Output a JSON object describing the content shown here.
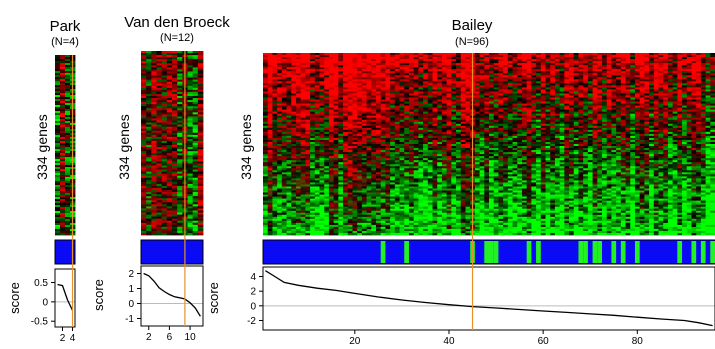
{
  "chart_data": [
    {
      "type": "heatmap",
      "title": "Park",
      "subtitle": "(N=4)",
      "ylabel": "334 genes",
      "n_genes": 334,
      "n_samples": 4,
      "cutoff_sample": 4,
      "class_bar_colors": {
        "class1": "#0a0af5",
        "class2": "#22f222"
      },
      "class_bar": [
        0,
        0,
        0,
        0
      ],
      "score_panel": {
        "ylabel": "score",
        "y_ticks": [
          "0.5",
          "0",
          "-0.5"
        ],
        "y_tick_values": [
          0.5,
          0,
          -0.5
        ],
        "x_ticks": [
          "2",
          "4"
        ],
        "x_tick_values": [
          2,
          4
        ],
        "xlim": [
          0.5,
          4.5
        ],
        "ylim": [
          -0.65,
          0.85
        ],
        "x": [
          1,
          2,
          3,
          4
        ],
        "y": [
          0.45,
          0.42,
          0.05,
          -0.22
        ]
      }
    },
    {
      "type": "heatmap",
      "title": "Van den Broeck",
      "subtitle": "(N=12)",
      "ylabel": "334 genes",
      "n_genes": 334,
      "n_samples": 12,
      "cutoff_sample": 9,
      "class_bar": [
        0,
        0,
        0,
        0,
        0,
        0,
        0,
        0,
        0,
        0,
        0,
        0
      ],
      "score_panel": {
        "ylabel": "score",
        "y_ticks": [
          "2",
          "1",
          "0",
          "-1"
        ],
        "y_tick_values": [
          2,
          1,
          0,
          -1
        ],
        "x_ticks": [
          "2",
          "6",
          "10"
        ],
        "x_tick_values": [
          2,
          6,
          10
        ],
        "xlim": [
          0.5,
          12.5
        ],
        "ylim": [
          -1.5,
          2.5
        ],
        "x": [
          1,
          2,
          3,
          4,
          5,
          6,
          7,
          8,
          9,
          10,
          11,
          12
        ],
        "y": [
          2.0,
          1.85,
          1.5,
          1.05,
          0.8,
          0.6,
          0.45,
          0.38,
          0.3,
          0.05,
          -0.3,
          -0.85
        ]
      }
    },
    {
      "type": "heatmap",
      "title": "Bailey",
      "subtitle": "(N=96)",
      "ylabel": "334 genes",
      "n_genes": 334,
      "n_samples": 96,
      "cutoff_sample": 45,
      "class_bar": [
        0,
        0,
        0,
        0,
        0,
        0,
        0,
        0,
        0,
        0,
        0,
        0,
        0,
        0,
        0,
        0,
        0,
        0,
        0,
        0,
        0,
        0,
        0,
        0,
        0,
        1,
        0,
        0,
        0,
        0,
        1,
        0,
        0,
        0,
        0,
        0,
        0,
        0,
        0,
        0,
        0,
        0,
        0,
        0,
        1,
        0,
        0,
        1,
        1,
        1,
        0,
        0,
        0,
        0,
        0,
        0,
        1,
        0,
        1,
        0,
        0,
        0,
        0,
        0,
        0,
        0,
        0,
        1,
        1,
        0,
        1,
        1,
        0,
        0,
        1,
        0,
        1,
        0,
        0,
        1,
        0,
        0,
        0,
        0,
        0,
        0,
        0,
        0,
        1,
        0,
        0,
        1,
        0,
        1,
        0,
        1
      ],
      "score_panel": {
        "ylabel": "score",
        "y_ticks": [
          "4",
          "2",
          "0",
          "-2"
        ],
        "y_tick_values": [
          4,
          2,
          0,
          -2
        ],
        "x_ticks": [
          "20",
          "40",
          "60",
          "80"
        ],
        "x_tick_values": [
          20,
          40,
          60,
          80
        ],
        "xlim": [
          0.5,
          96.5
        ],
        "ylim": [
          -3.3,
          5.3
        ],
        "x": [
          1,
          3,
          5,
          8,
          12,
          16,
          20,
          25,
          30,
          35,
          40,
          45,
          50,
          55,
          60,
          65,
          70,
          75,
          80,
          85,
          90,
          93,
          96
        ],
        "y": [
          4.8,
          4.0,
          3.2,
          2.8,
          2.4,
          2.1,
          1.7,
          1.2,
          0.8,
          0.45,
          0.15,
          -0.1,
          -0.3,
          -0.5,
          -0.7,
          -0.9,
          -1.1,
          -1.3,
          -1.55,
          -1.8,
          -2.0,
          -2.3,
          -2.7
        ]
      }
    }
  ]
}
